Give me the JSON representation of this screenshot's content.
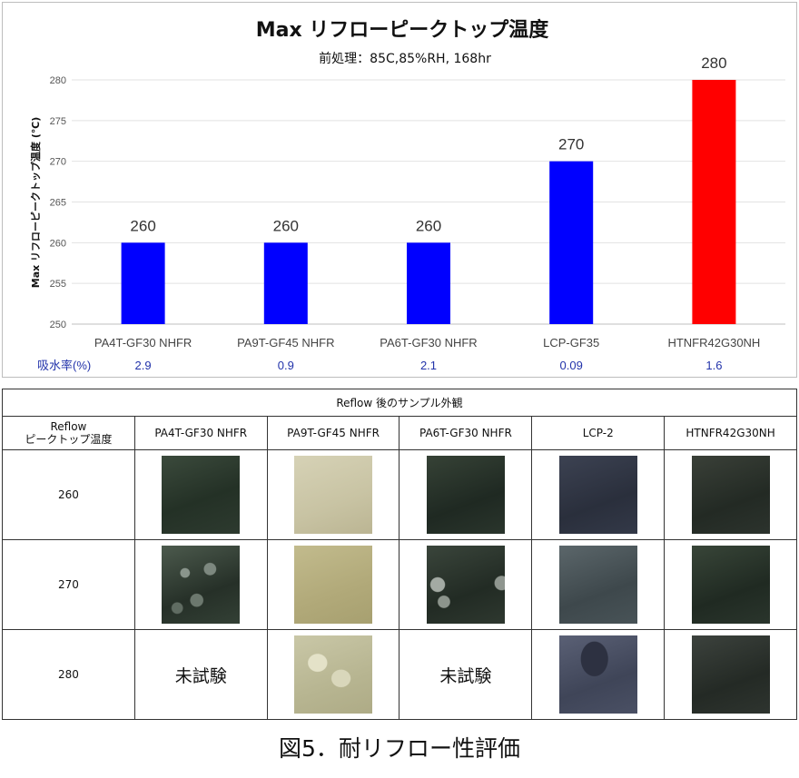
{
  "chart_data": {
    "type": "bar",
    "title": "Max リフローピークトップ温度",
    "subtitle": "前処理：85C,85%RH, 168hr",
    "ylabel": "Max リフローピークトップ温度 (℃)",
    "xlabel": "",
    "ylim": [
      250,
      280
    ],
    "yticks": [
      250,
      255,
      260,
      265,
      270,
      275,
      280
    ],
    "categories": [
      "PA4T-GF30 NHFR",
      "PA9T-GF45 NHFR",
      "PA6T-GF30 NHFR",
      "LCP-GF35",
      "HTNFR42G30NH"
    ],
    "values": [
      260,
      260,
      260,
      270,
      280
    ],
    "colors": [
      "#0000ff",
      "#0000ff",
      "#0000ff",
      "#0000ff",
      "#ff0000"
    ],
    "grid": true,
    "legend": "none",
    "extra_row": {
      "label": "吸水率(%)",
      "values": [
        "2.9",
        "0.9",
        "2.1",
        "0.09",
        "1.6"
      ]
    }
  },
  "table": {
    "caption": "Reflow 後のサンプル外観",
    "corner_header_line1": "Reflow",
    "corner_header_line2": "ピークトップ温度",
    "columns": [
      "PA4T-GF30 NHFR",
      "PA9T-GF45 NHFR",
      "PA6T-GF30 NHFR",
      "LCP-2",
      "HTNFR42G30NH"
    ],
    "untested_label": "未試験",
    "rows": [
      {
        "temp": "260",
        "cells": [
          "sample-photo",
          "sample-photo",
          "sample-photo",
          "sample-photo",
          "sample-photo"
        ]
      },
      {
        "temp": "270",
        "cells": [
          "sample-photo",
          "sample-photo",
          "sample-photo",
          "sample-photo",
          "sample-photo"
        ]
      },
      {
        "temp": "280",
        "cells": [
          "untested",
          "sample-photo",
          "untested",
          "sample-photo",
          "sample-photo"
        ]
      }
    ]
  },
  "figure_caption": "図5．耐リフロー性評価"
}
